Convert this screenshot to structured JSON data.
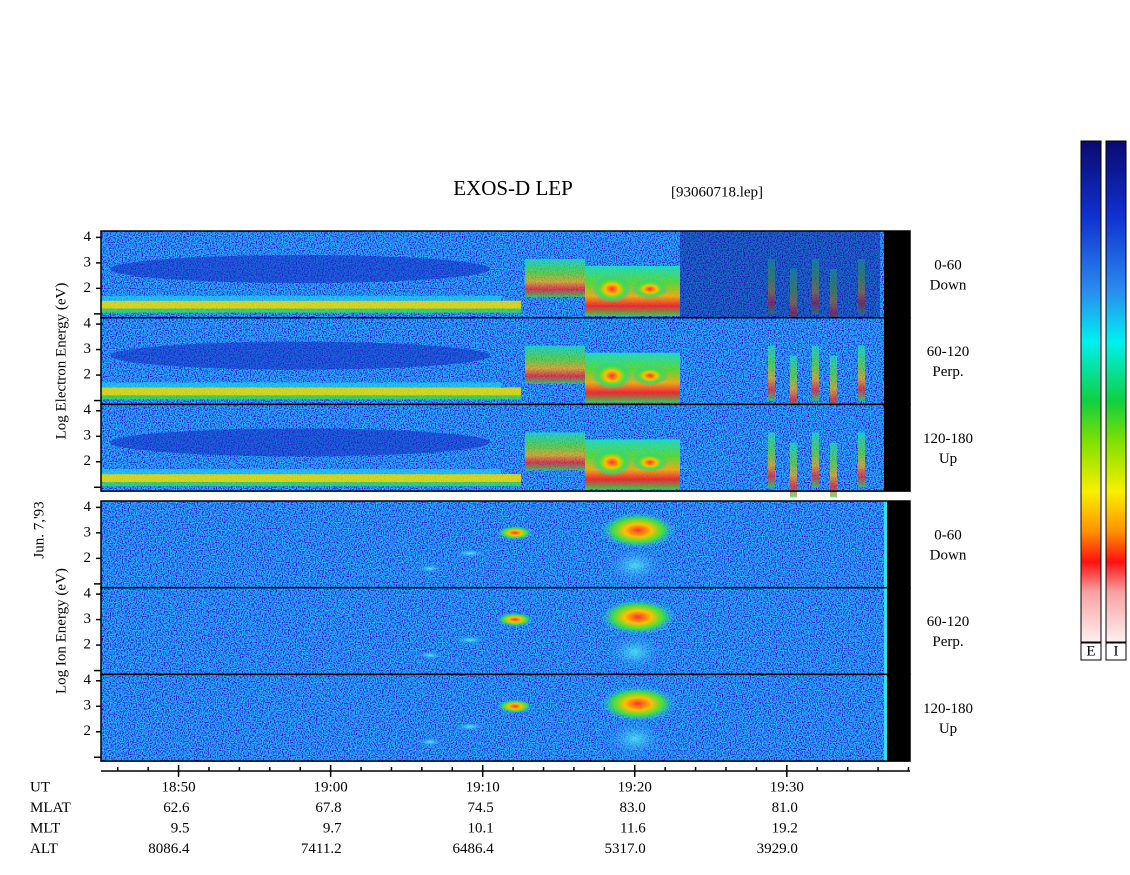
{
  "chart_data": {
    "type": "spectrogram",
    "title": "EXOS-D LEP",
    "file_label": "[93060718.lep]",
    "date_label": "Jun. 7,'93",
    "xlim": [
      1124.9,
      1178.1
    ],
    "xticks": [
      {
        "value": 1130,
        "label": "18:50"
      },
      {
        "value": 1140,
        "label": "19:00"
      },
      {
        "value": 1150,
        "label": "19:10"
      },
      {
        "value": 1160,
        "label": "19:20"
      },
      {
        "value": 1170,
        "label": "19:30"
      }
    ],
    "minor_xticks": [
      1126,
      1128,
      1132,
      1134,
      1136,
      1138,
      1142,
      1144,
      1146,
      1148,
      1152,
      1154,
      1156,
      1158,
      1162,
      1164,
      1166,
      1168,
      1172,
      1174,
      1176,
      1178
    ],
    "ylim": [
      0.85,
      4.25
    ],
    "yticks": [
      2,
      3,
      4
    ],
    "minor_yticks": [
      1
    ],
    "groups": [
      {
        "axis_label": "Log Electron Energy (eV)",
        "panels": [
          {
            "angle": "0-60",
            "direction": "Down"
          },
          {
            "angle": "60-120",
            "direction": "Perp."
          },
          {
            "angle": "120-180",
            "direction": "Up"
          }
        ]
      },
      {
        "axis_label": "Log Ion Energy (eV)",
        "panels": [
          {
            "angle": "0-60",
            "direction": "Down"
          },
          {
            "angle": "60-120",
            "direction": "Perp."
          },
          {
            "angle": "120-180",
            "direction": "Up"
          }
        ]
      }
    ],
    "orbit": [
      {
        "name": "UT"
      },
      {
        "name": "MLAT",
        "values": [
          "62.6",
          "67.8",
          "74.5",
          "83.0",
          "81.0"
        ]
      },
      {
        "name": "MLT",
        "values": [
          "9.5",
          "9.7",
          "10.1",
          "11.6",
          "19.2"
        ]
      },
      {
        "name": "ALT",
        "values": [
          "8086.4",
          "7411.2",
          "6486.4",
          "5317.0",
          "3929.0"
        ]
      }
    ],
    "colorbars": [
      "E",
      "I"
    ]
  }
}
